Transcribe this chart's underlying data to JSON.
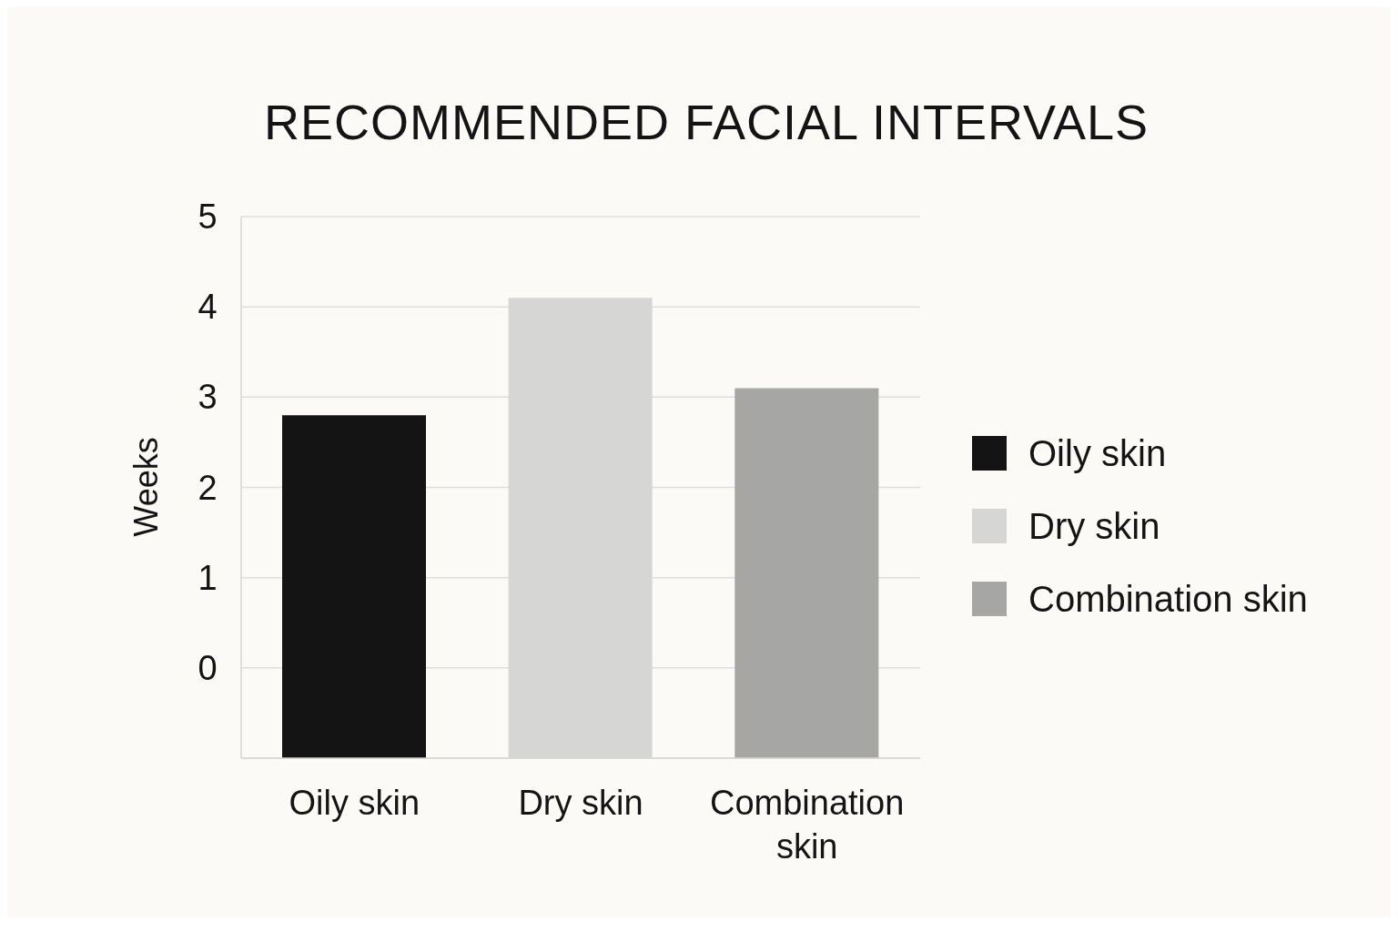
{
  "chart_data": {
    "type": "bar",
    "title": "RECOMMENDED FACIAL INTERVALS",
    "ylabel": "Weeks",
    "categories": [
      "Oily skin",
      "Dry skin",
      "Combination skin"
    ],
    "series": [
      {
        "name": "Oily skin",
        "color": "#141414",
        "base": [
          -1,
          null,
          null
        ],
        "values": [
          3.8,
          null,
          null
        ]
      },
      {
        "name": "Dry skin",
        "color": "#d6d6d4",
        "base": [
          null,
          -1,
          null
        ],
        "values": [
          null,
          5.1,
          null
        ]
      },
      {
        "name": "Combination skin",
        "color": "#a6a6a4",
        "base": [
          null,
          null,
          -1
        ],
        "values": [
          null,
          null,
          4.1
        ]
      }
    ],
    "ylim": [
      -1,
      5
    ],
    "yticks": [
      0,
      1,
      2,
      3,
      4,
      5
    ],
    "grid": "y",
    "legend": "right"
  }
}
